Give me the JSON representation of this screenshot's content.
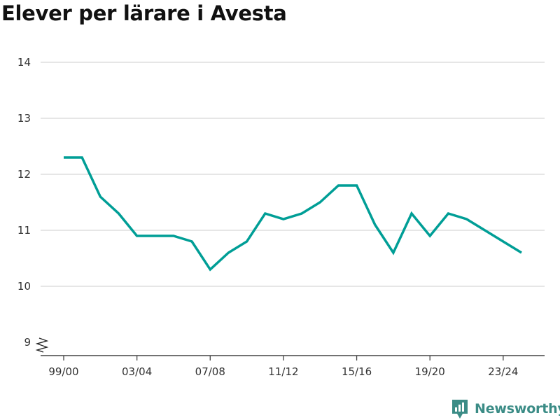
{
  "brand": {
    "name": "Newsworthy",
    "color": "#3b8c86"
  },
  "chart_data": {
    "type": "line",
    "title": "Elever per lärare i Avesta",
    "xlabel": "",
    "ylabel": "",
    "x": [
      "99/00",
      "00/01",
      "01/02",
      "02/03",
      "03/04",
      "04/05",
      "05/06",
      "06/07",
      "07/08",
      "08/09",
      "09/10",
      "10/11",
      "11/12",
      "12/13",
      "13/14",
      "14/15",
      "15/16",
      "16/17",
      "17/18",
      "18/19",
      "19/20",
      "20/21",
      "21/22",
      "22/23",
      "23/24",
      "24/25"
    ],
    "x_tick_labels": [
      "99/00",
      "03/04",
      "07/08",
      "11/12",
      "15/16",
      "19/20",
      "23/24"
    ],
    "y_tick_labels": [
      "9",
      "10",
      "11",
      "12",
      "13",
      "14"
    ],
    "ylim": [
      9,
      14
    ],
    "axis_break": true,
    "grid": true,
    "series": [
      {
        "color": "#009e96",
        "values": [
          12.3,
          12.3,
          11.6,
          11.3,
          10.9,
          10.9,
          10.9,
          10.8,
          10.3,
          10.6,
          10.8,
          11.3,
          11.2,
          11.3,
          11.5,
          11.8,
          11.8,
          11.1,
          10.6,
          11.3,
          10.9,
          11.3,
          11.2,
          11.0,
          10.8,
          10.6
        ]
      }
    ]
  }
}
